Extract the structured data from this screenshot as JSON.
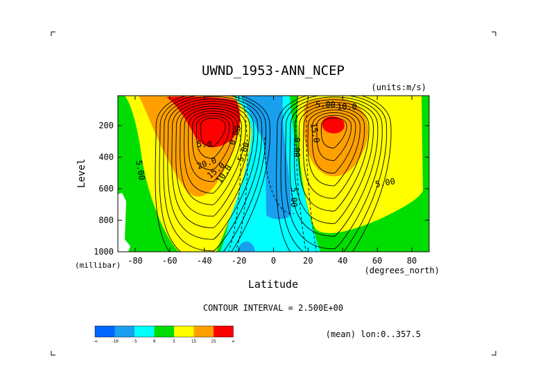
{
  "chart_data": {
    "type": "heatmap",
    "title": "UWND_1953-ANN_NCEP",
    "units": "(units:m/s)",
    "xlabel": "Latitude",
    "xunit": "(degrees_north)",
    "ylabel": "Level",
    "yunit": "(millibar)",
    "xlim": [
      -90,
      90
    ],
    "ylim": [
      1000,
      10
    ],
    "x_ticks": [
      -80,
      -60,
      -40,
      -20,
      0,
      20,
      40,
      60,
      80
    ],
    "x_tick_labels": [
      "-80",
      "-60",
      "-40",
      "-20",
      "0",
      "20",
      "40",
      "60",
      "80"
    ],
    "y_ticks": [
      200,
      400,
      600,
      800,
      1000
    ],
    "y_tick_labels": [
      "200",
      "400",
      "600",
      "800",
      "1000"
    ],
    "contour_interval_label": "CONTOUR INTERVAL = 2.500E+00",
    "footer_note": "(mean) lon:0..357.5",
    "contour_labels": [
      "5.00",
      "20.0",
      "15.0",
      "10.0",
      "5.0",
      "5.00",
      "0.00",
      "15.0",
      "10.0",
      "5.00",
      "5.00",
      "5.00",
      "0.00"
    ],
    "colorbar": {
      "colors": [
        "#0064ff",
        "#18a0ee",
        "#00ffff",
        "#00dd00",
        "#ffff00",
        "#ffa000",
        "#ff0000"
      ],
      "tick_labels": [
        "-∞",
        "-10",
        "-5",
        "0",
        "5",
        "15",
        "25",
        "∞"
      ]
    },
    "jets": [
      {
        "name": "",
        "lat": -35,
        "level": 200,
        "peak": 30
      },
      {
        "name": "",
        "lat": 35,
        "level": 200,
        "peak": 28
      }
    ]
  }
}
